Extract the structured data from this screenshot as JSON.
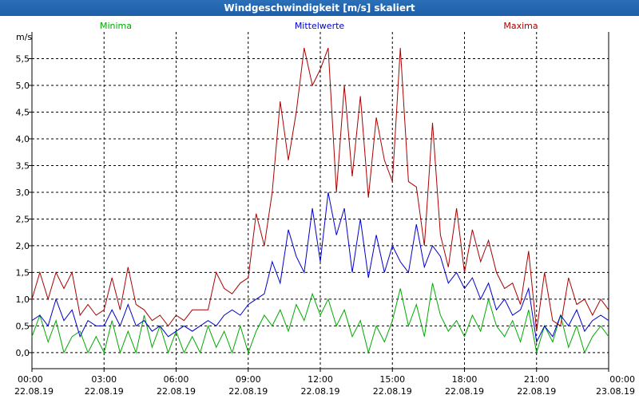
{
  "window": {
    "title": "Windgeschwindigkeit [m/s] skaliert"
  },
  "chart_data": {
    "type": "line",
    "title": "Windgeschwindigkeit [m/s] skaliert",
    "ylabel": "m/s",
    "xlabel": "",
    "ylim": [
      -0.3,
      6.0
    ],
    "yticks": [
      0.0,
      0.5,
      1.0,
      1.5,
      2.0,
      2.5,
      3.0,
      3.5,
      4.0,
      4.5,
      5.0,
      5.5
    ],
    "ytick_labels": [
      "0,0",
      "0,5",
      "1,0",
      "1,5",
      "2,0",
      "2,5",
      "3,0",
      "3,5",
      "4,0",
      "4,5",
      "5,0",
      "5,5"
    ],
    "xlim": [
      0,
      24
    ],
    "xticks": [
      0,
      3,
      6,
      9,
      12,
      15,
      18,
      21,
      24
    ],
    "xtick_times": [
      "00:00",
      "03:00",
      "06:00",
      "09:00",
      "12:00",
      "15:00",
      "18:00",
      "21:00",
      "00:00"
    ],
    "xtick_dates": [
      "22.08.19",
      "22.08.19",
      "22.08.19",
      "22.08.19",
      "22.08.19",
      "22.08.19",
      "22.08.19",
      "22.08.19",
      "23.08.19"
    ],
    "grid": true,
    "legend": [
      {
        "name": "Minima",
        "color": "#00aa00",
        "position": "top-left"
      },
      {
        "name": "Mittelwerte",
        "color": "#0000cc",
        "position": "top-center"
      },
      {
        "name": "Maxima",
        "color": "#aa0000",
        "position": "top-right"
      }
    ],
    "series": [
      {
        "name": "Minima",
        "color": "#00aa00",
        "x": [
          0,
          0.33,
          0.67,
          1,
          1.33,
          1.67,
          2,
          2.33,
          2.67,
          3,
          3.33,
          3.67,
          4,
          4.33,
          4.67,
          5,
          5.33,
          5.67,
          6,
          6.33,
          6.67,
          7,
          7.33,
          7.67,
          8,
          8.33,
          8.67,
          9,
          9.33,
          9.67,
          10,
          10.33,
          10.67,
          11,
          11.33,
          11.67,
          12,
          12.33,
          12.67,
          13,
          13.33,
          13.67,
          14,
          14.33,
          14.67,
          15,
          15.33,
          15.67,
          16,
          16.33,
          16.67,
          17,
          17.33,
          17.67,
          18,
          18.33,
          18.67,
          19,
          19.33,
          19.67,
          20,
          20.33,
          20.67,
          21,
          21.33,
          21.67,
          22,
          22.33,
          22.67,
          23,
          23.33,
          23.67,
          24
        ],
        "values": [
          0.3,
          0.7,
          0.2,
          0.6,
          0.0,
          0.3,
          0.4,
          0.0,
          0.3,
          0.0,
          0.6,
          0.0,
          0.4,
          0.0,
          0.7,
          0.1,
          0.5,
          0.0,
          0.4,
          0.0,
          0.3,
          0.0,
          0.5,
          0.1,
          0.4,
          0.0,
          0.5,
          0.0,
          0.4,
          0.7,
          0.5,
          0.8,
          0.4,
          0.9,
          0.6,
          1.1,
          0.7,
          1.0,
          0.5,
          0.8,
          0.3,
          0.6,
          0.0,
          0.5,
          0.2,
          0.6,
          1.2,
          0.5,
          0.9,
          0.3,
          1.3,
          0.7,
          0.4,
          0.6,
          0.3,
          0.7,
          0.4,
          1.0,
          0.5,
          0.3,
          0.6,
          0.2,
          0.8,
          0.0,
          0.5,
          0.2,
          0.7,
          0.1,
          0.5,
          0.0,
          0.3,
          0.5,
          0.3
        ]
      },
      {
        "name": "Mittelwerte",
        "color": "#0000cc",
        "x": [
          0,
          0.33,
          0.67,
          1,
          1.33,
          1.67,
          2,
          2.33,
          2.67,
          3,
          3.33,
          3.67,
          4,
          4.33,
          4.67,
          5,
          5.33,
          5.67,
          6,
          6.33,
          6.67,
          7,
          7.33,
          7.67,
          8,
          8.33,
          8.67,
          9,
          9.33,
          9.67,
          10,
          10.33,
          10.67,
          11,
          11.33,
          11.67,
          12,
          12.33,
          12.67,
          13,
          13.33,
          13.67,
          14,
          14.33,
          14.67,
          15,
          15.33,
          15.67,
          16,
          16.33,
          16.67,
          17,
          17.33,
          17.67,
          18,
          18.33,
          18.67,
          19,
          19.33,
          19.67,
          20,
          20.33,
          20.67,
          21,
          21.33,
          21.67,
          22,
          22.33,
          22.67,
          23,
          23.33,
          23.67,
          24
        ],
        "values": [
          0.6,
          0.7,
          0.5,
          1.0,
          0.6,
          0.8,
          0.3,
          0.6,
          0.5,
          0.5,
          0.8,
          0.5,
          0.9,
          0.5,
          0.6,
          0.4,
          0.5,
          0.3,
          0.4,
          0.5,
          0.4,
          0.5,
          0.6,
          0.5,
          0.7,
          0.8,
          0.7,
          0.9,
          1.0,
          1.1,
          1.7,
          1.3,
          2.3,
          1.8,
          1.5,
          2.7,
          1.7,
          3.0,
          2.2,
          2.7,
          1.5,
          2.5,
          1.4,
          2.2,
          1.5,
          2.0,
          1.7,
          1.5,
          2.4,
          1.6,
          2.0,
          1.8,
          1.3,
          1.5,
          1.2,
          1.4,
          1.0,
          1.3,
          0.8,
          1.0,
          0.7,
          0.8,
          1.2,
          0.2,
          0.5,
          0.3,
          0.7,
          0.5,
          0.8,
          0.4,
          0.6,
          0.7,
          0.6
        ]
      },
      {
        "name": "Maxima",
        "color": "#aa0000",
        "x": [
          0,
          0.33,
          0.67,
          1,
          1.33,
          1.67,
          2,
          2.33,
          2.67,
          3,
          3.33,
          3.67,
          4,
          4.33,
          4.67,
          5,
          5.33,
          5.67,
          6,
          6.33,
          6.67,
          7,
          7.33,
          7.67,
          8,
          8.33,
          8.67,
          9,
          9.33,
          9.67,
          10,
          10.33,
          10.67,
          11,
          11.33,
          11.67,
          12,
          12.33,
          12.67,
          13,
          13.33,
          13.67,
          14,
          14.33,
          14.67,
          15,
          15.33,
          15.67,
          16,
          16.33,
          16.67,
          17,
          17.33,
          17.67,
          18,
          18.33,
          18.67,
          19,
          19.33,
          19.67,
          20,
          20.33,
          20.67,
          21,
          21.33,
          21.67,
          22,
          22.33,
          22.67,
          23,
          23.33,
          23.67,
          24
        ],
        "values": [
          1.0,
          1.5,
          1.0,
          1.5,
          1.2,
          1.5,
          0.7,
          0.9,
          0.7,
          0.8,
          1.4,
          0.8,
          1.6,
          0.9,
          0.8,
          0.6,
          0.7,
          0.5,
          0.7,
          0.6,
          0.8,
          0.8,
          0.8,
          1.5,
          1.2,
          1.1,
          1.3,
          1.4,
          2.6,
          2.0,
          3.0,
          4.7,
          3.6,
          4.5,
          5.7,
          5.0,
          5.3,
          5.7,
          3.0,
          5.0,
          3.3,
          4.8,
          2.9,
          4.4,
          3.6,
          3.2,
          5.7,
          3.2,
          3.1,
          2.0,
          4.3,
          2.2,
          1.6,
          2.7,
          1.5,
          2.3,
          1.7,
          2.1,
          1.5,
          1.2,
          1.3,
          0.9,
          1.9,
          0.4,
          1.5,
          0.6,
          0.5,
          1.4,
          0.9,
          1.0,
          0.7,
          1.0,
          0.8
        ]
      }
    ]
  }
}
